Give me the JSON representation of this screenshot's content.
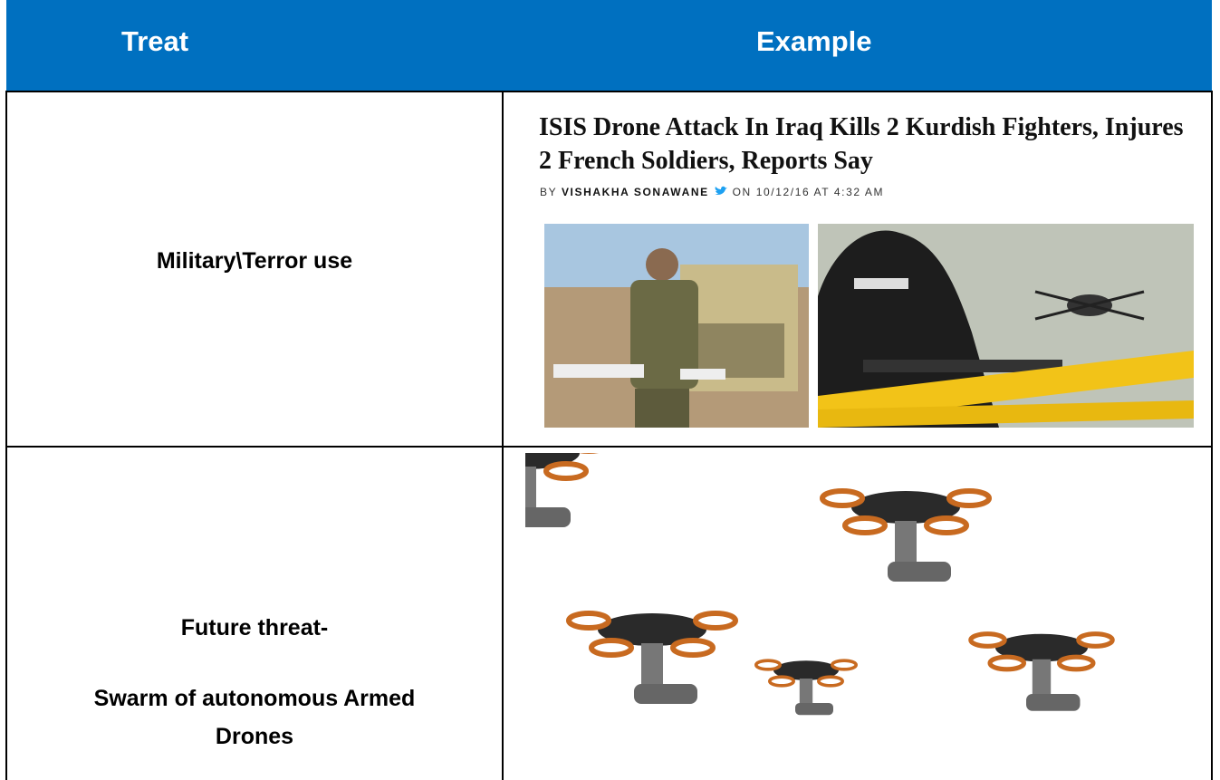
{
  "header": {
    "columns": [
      "Treat",
      "Example"
    ]
  },
  "rows": [
    {
      "treat": "Military\\Terror use",
      "example": {
        "headline": "ISIS Drone Attack In Iraq Kills 2 Kurdish Fighters, Injures 2 French Soldiers, Reports Say",
        "byline": {
          "prefix": "BY",
          "author": "VISHAKHA SONAWANE",
          "date": "ON 10/12/16 AT 4:32 AM"
        }
      }
    },
    {
      "treat_lines": [
        "Future threat-",
        "Swarm of autonomous Armed Drones"
      ]
    }
  ]
}
